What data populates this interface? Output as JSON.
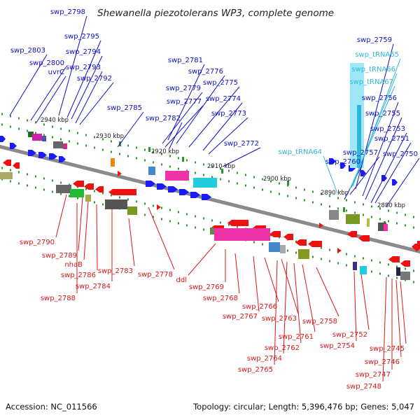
{
  "header": {
    "title": "Shewanella piezotolerans WP3, complete genome"
  },
  "footer": {
    "accession": "Accession: NC_011566",
    "summary": "Topology: circular; Length: 5,396,476 bp; Genes: 5,047"
  },
  "scale": [
    "2940 kbp",
    "2930 kbp",
    "2920 kbp",
    "2910 kbp",
    "2900 kbp",
    "2890 kbp",
    "2880 kbp"
  ],
  "labels": {
    "forward": [
      "swp_2798",
      "swp_2795",
      "swp_2803",
      "swp_2794",
      "swp_2800",
      "uvrC",
      "swp_2793",
      "swp_2792",
      "swp_2785",
      "swp_2781",
      "swp_2776",
      "swp_2779",
      "swp_2775",
      "swp_2777",
      "swp_2774",
      "swp_2782",
      "swp_2773",
      "swp_2772",
      "swp_2759",
      "swp_2756",
      "swp_2755",
      "swp_2753",
      "swp_2751",
      "swp_2757",
      "swp_2750",
      "swp_2760"
    ],
    "trna": [
      "swp_tRNA65",
      "swp_tRNA66",
      "swp_tRNA67",
      "swp_tRNA64"
    ],
    "reverse": [
      "swp_2790",
      "swp_2789",
      "nhaB",
      "swp_2786",
      "swp_2783",
      "swp_2784",
      "swp_2788",
      "swp_2778",
      "ddl",
      "swp_2769",
      "swp_2768",
      "swp_2766",
      "swp_2767",
      "swp_2763",
      "swp_2761",
      "swp_2758",
      "swp_2762",
      "swp_2764",
      "swp_2765",
      "swp_2752",
      "swp_2754",
      "swp_2745",
      "swp_2746",
      "swp_2747",
      "swp_2748"
    ]
  },
  "colors": {
    "forward_label": "#1010c8",
    "reverse_label": "#d81818",
    "trna_label": "#30b8d8",
    "backbone": "#8a8a8a",
    "tick": "#2e9a2e"
  }
}
